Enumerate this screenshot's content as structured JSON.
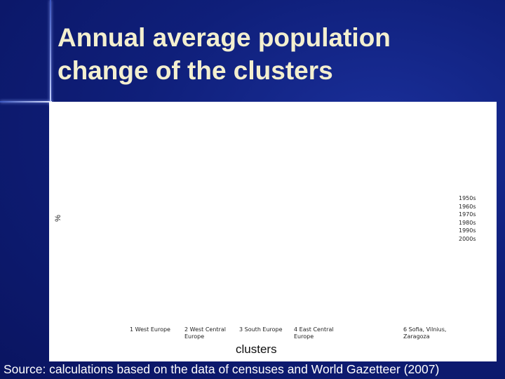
{
  "title": "Annual average population change of the clusters",
  "chart_data": {
    "type": "bar",
    "y_label": "%",
    "x_label": "clusters",
    "categories": [
      "1 West Europe",
      "2 West Central Europe",
      "3 South Europe",
      "4 East Central Europe",
      null,
      "6 Sofia, Vilnius, Zaragoza"
    ],
    "series": [
      {
        "name": "1950s"
      },
      {
        "name": "1960s"
      },
      {
        "name": "1970s"
      },
      {
        "name": "1980s"
      },
      {
        "name": "1990s"
      },
      {
        "name": "2000s"
      }
    ]
  },
  "source": "Source: calculations based on the data of censuses and World Gazetteer (2007)"
}
